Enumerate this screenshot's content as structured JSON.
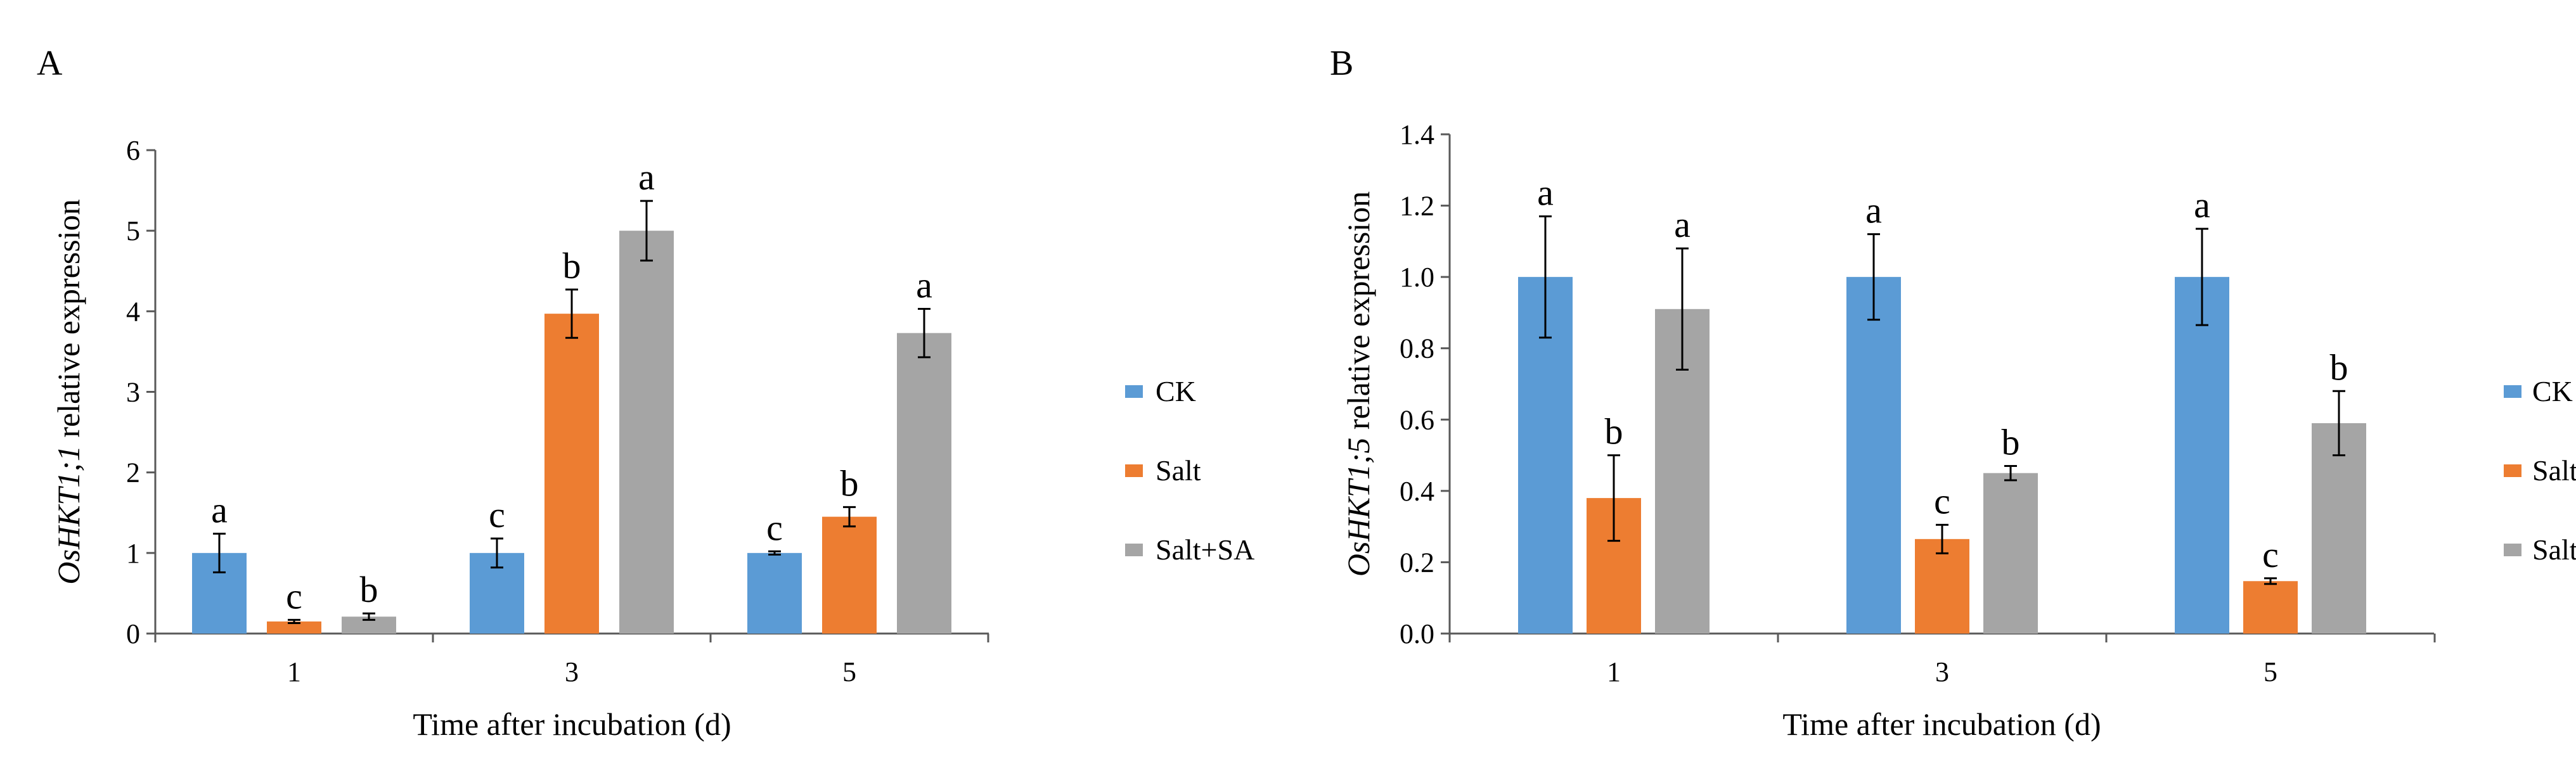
{
  "colors": {
    "CK": "#5B9BD5",
    "Salt": "#ED7D31",
    "Salt+SA": "#A5A5A5",
    "axis": "#595959"
  },
  "chart_data": [
    {
      "panel_label": "A",
      "type": "bar",
      "categories": [
        "1",
        "3",
        "5"
      ],
      "series": [
        {
          "name": "CK",
          "values": [
            1.0,
            1.0,
            1.0
          ],
          "errors": [
            0.24,
            0.18,
            0.02
          ],
          "letters": [
            "a",
            "c",
            "c"
          ]
        },
        {
          "name": "Salt",
          "values": [
            0.15,
            3.97,
            1.45
          ],
          "errors": [
            0.02,
            0.3,
            0.12
          ],
          "letters": [
            "c",
            "b",
            "b"
          ]
        },
        {
          "name": "Salt+SA",
          "values": [
            0.21,
            5.0,
            3.73
          ],
          "errors": [
            0.04,
            0.37,
            0.3
          ],
          "letters": [
            "b",
            "a",
            "a"
          ]
        }
      ],
      "xlabel": "Time after incubation (d)",
      "ylabel_italic": "OsHKT1;1",
      "ylabel_rest": " relative expression",
      "ylim": [
        0,
        6
      ],
      "yticks": [
        "0",
        "1",
        "2",
        "3",
        "4",
        "5",
        "6"
      ],
      "grid": false,
      "legend_position": "right"
    },
    {
      "panel_label": "B",
      "type": "bar",
      "categories": [
        "1",
        "3",
        "5"
      ],
      "series": [
        {
          "name": "CK",
          "values": [
            1.0,
            1.0,
            1.0
          ],
          "errors": [
            0.17,
            0.12,
            0.135
          ],
          "letters": [
            "a",
            "a",
            "a"
          ]
        },
        {
          "name": "Salt",
          "values": [
            0.38,
            0.265,
            0.147
          ],
          "errors": [
            0.12,
            0.04,
            0.008
          ],
          "letters": [
            "b",
            "c",
            "c"
          ]
        },
        {
          "name": "Salt+SA",
          "values": [
            0.91,
            0.45,
            0.59
          ],
          "errors": [
            0.17,
            0.02,
            0.09
          ],
          "letters": [
            "a",
            "b",
            "b"
          ]
        }
      ],
      "xlabel": "Time after incubation (d)",
      "ylabel_italic": "OsHKT1;5",
      "ylabel_rest": " relative expression",
      "ylim": [
        0,
        1.4
      ],
      "yticks": [
        "0.0",
        "0.2",
        "0.4",
        "0.6",
        "0.8",
        "1.0",
        "1.2",
        "1.4"
      ],
      "grid": false,
      "legend_position": "right"
    }
  ]
}
